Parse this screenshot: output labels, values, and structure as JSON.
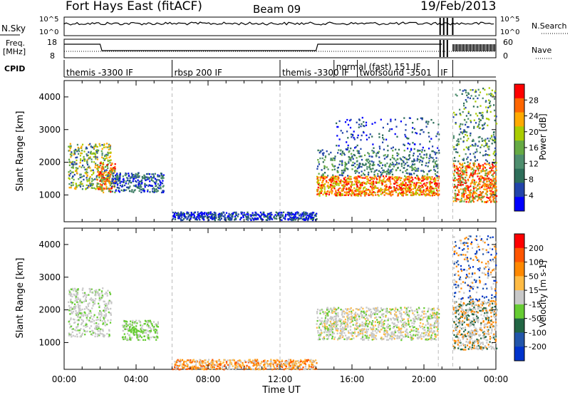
{
  "header": {
    "station": "Fort Hays East (fitACF)",
    "beam": "Beam 09",
    "date": "19/Feb/2013"
  },
  "strip_labels": {
    "nsky": "N.Sky",
    "nsky_ticks": [
      "10^5",
      "10^0"
    ],
    "nsearch": "N.Search",
    "nsearch_ticks": [
      "10^5",
      "10^0"
    ],
    "freq_top": "Freq.",
    "freq_unit": "[MHz]",
    "freq_ticks": [
      "18",
      "8"
    ],
    "nave": "Nave",
    "nave_ticks": [
      "60",
      "0"
    ],
    "cpid": "CPID"
  },
  "colors": {
    "power_scale": [
      "#0000ff",
      "#2244aa",
      "#2e6e5a",
      "#4e8e6e",
      "#66aa44",
      "#aacc00",
      "#ffaa00",
      "#ff6600",
      "#ff0000"
    ],
    "velocity_scale": [
      "#0033cc",
      "#2255aa",
      "#226644",
      "#66cc33",
      "#c8c8c8",
      "#ffbb44",
      "#ff8800",
      "#ff5500",
      "#ff0000"
    ]
  },
  "chart_data": [
    {
      "type": "table",
      "title": "CPID",
      "segments": [
        {
          "label": "themis -3300 IF",
          "start": 0.0,
          "end": 6.0
        },
        {
          "label": "rbsp 200 IF",
          "start": 6.0,
          "end": 12.0
        },
        {
          "label": "themis -3300 IF",
          "start": 12.0,
          "end": 16.3
        },
        {
          "label": "normal (fast) 151 IF",
          "start": 15.0,
          "end": 20.8
        },
        {
          "label": "twofsound -3501",
          "start": 16.3,
          "end": 20.8
        },
        {
          "label": "IF",
          "start": 20.8,
          "end": 21.6
        }
      ]
    },
    {
      "type": "heatmap",
      "title": "Power",
      "ylabel": "Slant Range [km]",
      "xlabel": "Time UT",
      "colorbar_label": "Power [dB]",
      "colorbar_ticks": [
        "28",
        "24",
        "20",
        "16",
        "12",
        "8",
        "4"
      ],
      "x_ticks": [
        "00:00",
        "04:00",
        "08:00",
        "12:00",
        "16:00",
        "20:00",
        "00:00"
      ],
      "y_ticks": [
        "4000",
        "3000",
        "2000",
        "1000"
      ],
      "ylim": [
        180,
        4500
      ],
      "xlim": [
        0,
        24
      ]
    },
    {
      "type": "heatmap",
      "title": "Velocity",
      "ylabel": "Slant Range [km]",
      "xlabel": "Time UT",
      "colorbar_label": "Velocity [m s-1]",
      "colorbar_ticks": [
        "200",
        "100",
        "50",
        "15",
        "-15",
        "-50",
        "-100",
        "-200"
      ],
      "x_ticks": [
        "00:00",
        "04:00",
        "08:00",
        "12:00",
        "16:00",
        "20:00",
        "00:00"
      ],
      "y_ticks": [
        "4000",
        "3000",
        "2000",
        "1000"
      ],
      "ylim": [
        180,
        4500
      ],
      "xlim": [
        0,
        24
      ]
    }
  ],
  "axis_title": "Time UT"
}
